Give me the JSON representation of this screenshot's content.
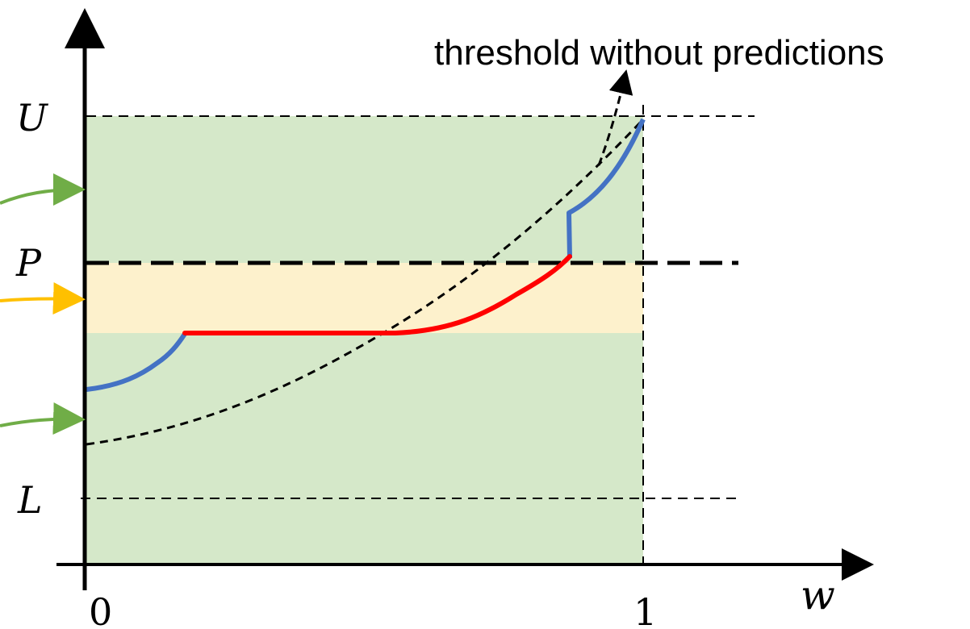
{
  "diagram": {
    "annotation": "threshold without predictions",
    "y_labels": {
      "U": "U",
      "P": "P",
      "L": "L"
    },
    "x_labels": {
      "origin": "0",
      "one": "1",
      "axis": "w"
    },
    "colors": {
      "green_region": "#d5e8c9",
      "yellow_region": "#fdf1cc",
      "blue_curve": "#4472c4",
      "red_curve": "#ff0000",
      "green_arrow": "#70ad47",
      "yellow_arrow": "#ffc000",
      "axis": "#000000"
    }
  }
}
